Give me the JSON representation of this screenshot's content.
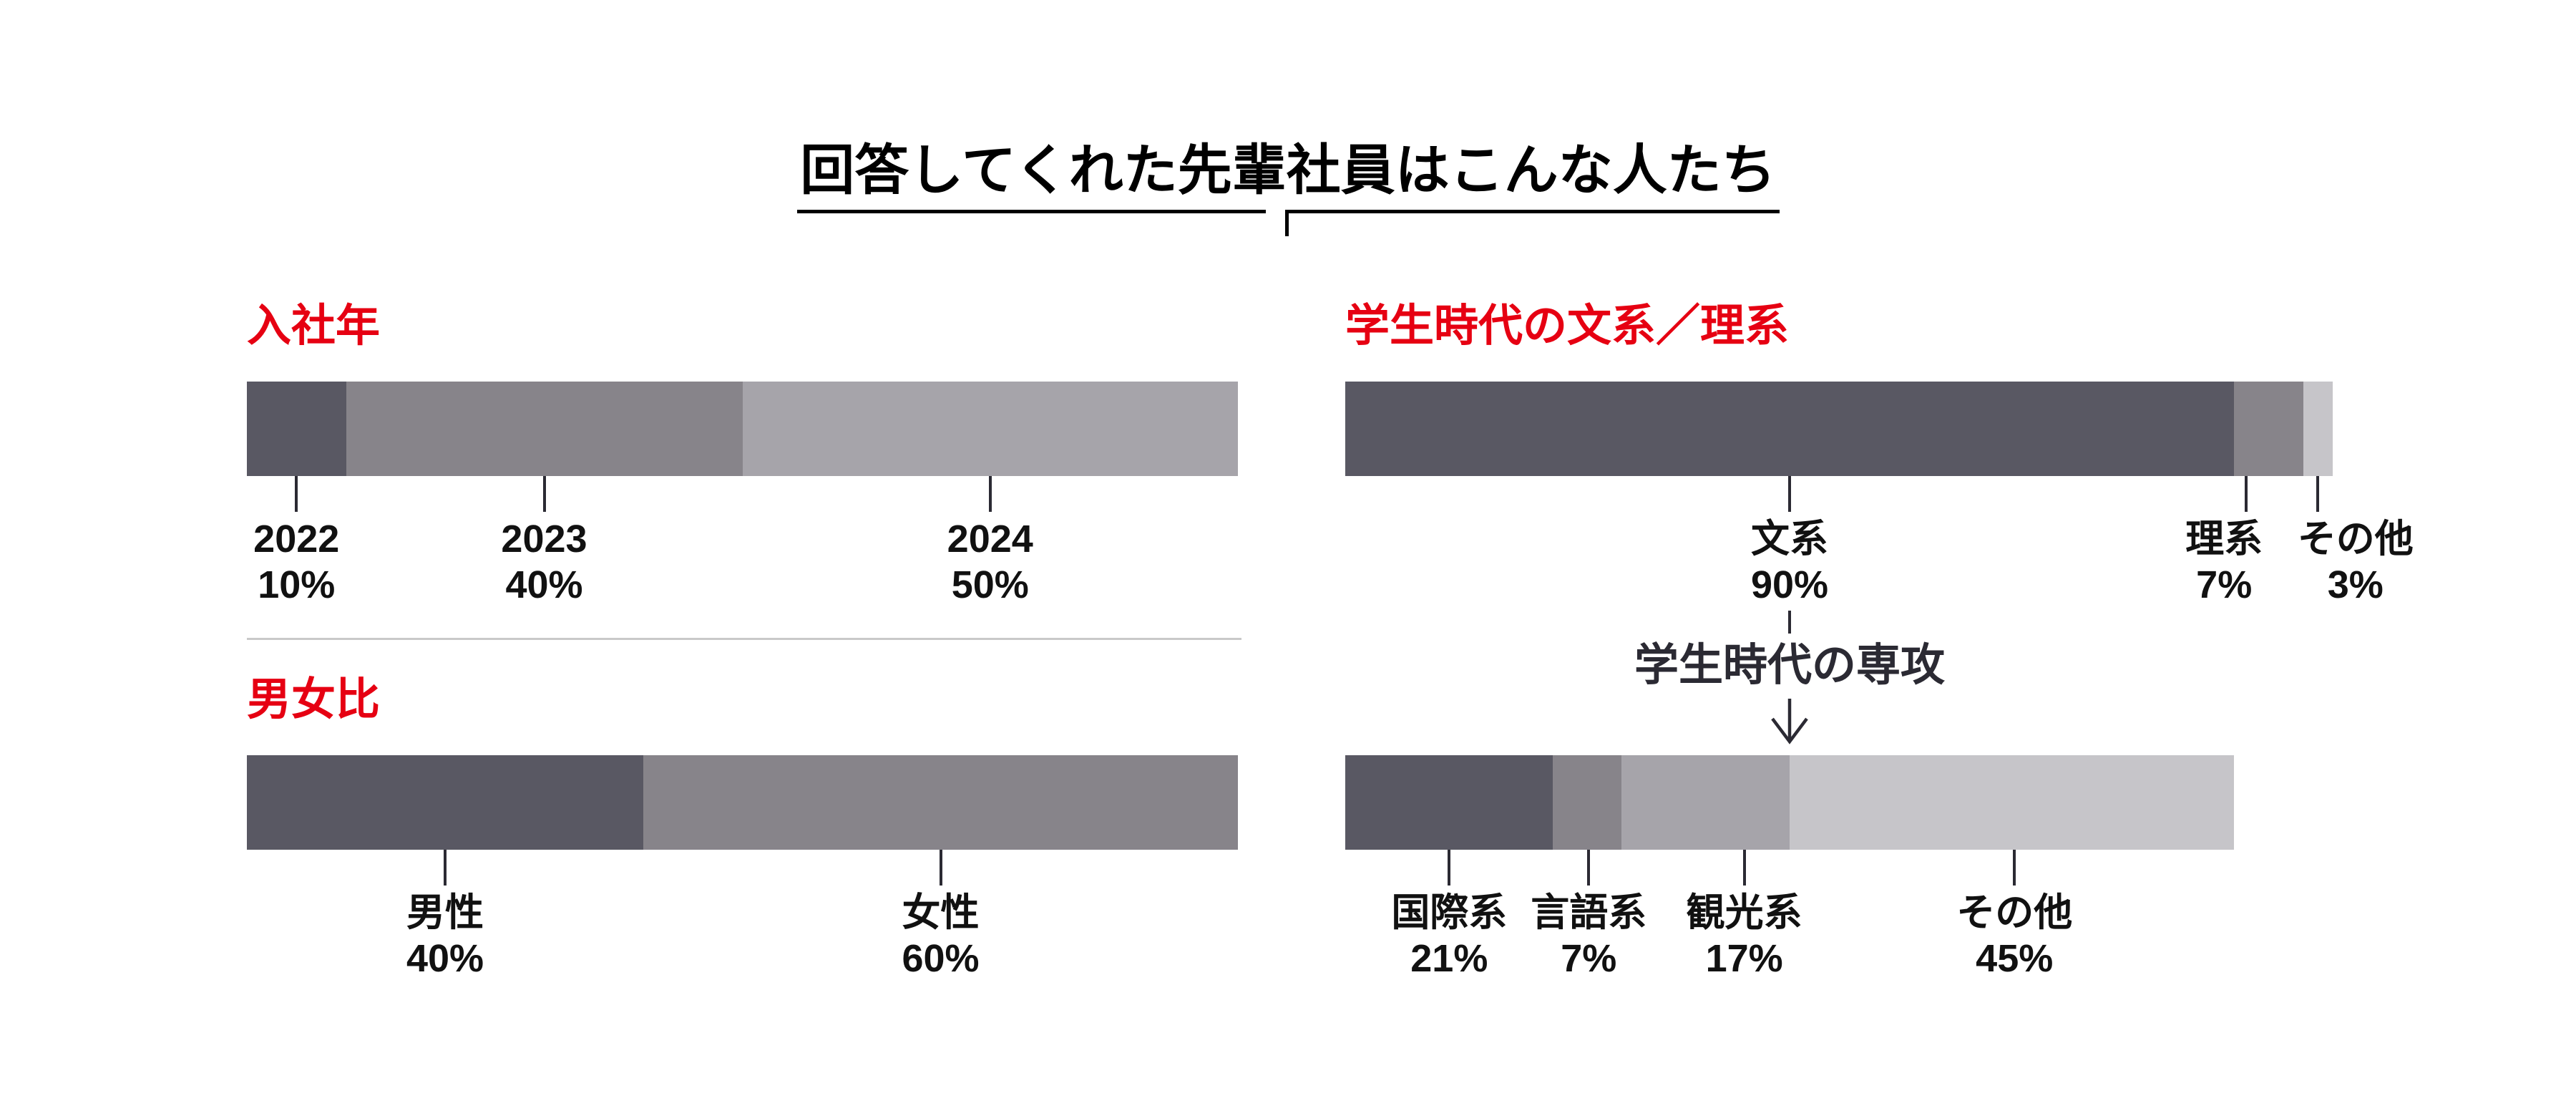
{
  "title": {
    "text": "回答してくれた先輩社員はこんな人たち"
  },
  "colors": {
    "accent_red": "#E60012",
    "bar_dark": "#595863",
    "bar_medium": "#87848A",
    "bar_light": "#A6A4AA",
    "bar_lightest": "#C6C5C9",
    "line_dark": "#2B2A33",
    "text_black": "#111111",
    "divider_gray": "#C9C9C9",
    "background": "#FFFFFF"
  },
  "chart_data": [
    {
      "key": "joining-year",
      "type": "bar",
      "stacked": true,
      "orientation": "horizontal",
      "title": "入社年",
      "total": 100,
      "unit": "%",
      "legend": "none",
      "segments": [
        {
          "label": "2022",
          "value": 10,
          "color": "#595863",
          "tick_at": 5,
          "label_at": 5
        },
        {
          "label": "2023",
          "value": 40,
          "color": "#87848A",
          "tick_at": 30,
          "label_at": 30
        },
        {
          "label": "2024",
          "value": 50,
          "color": "#A6A4AA",
          "tick_at": 75,
          "label_at": 75
        }
      ]
    },
    {
      "key": "gender-ratio",
      "type": "bar",
      "stacked": true,
      "orientation": "horizontal",
      "title": "男女比",
      "total": 100,
      "unit": "%",
      "legend": "none",
      "segments": [
        {
          "label": "男性",
          "value": 40,
          "color": "#595863",
          "tick_at": 20,
          "label_at": 20
        },
        {
          "label": "女性",
          "value": 60,
          "color": "#87848A",
          "tick_at": 70,
          "label_at": 70
        }
      ]
    },
    {
      "key": "humanities-sciences",
      "type": "bar",
      "stacked": true,
      "orientation": "horizontal",
      "title": "学生時代の文系／理系",
      "total": 100,
      "unit": "%",
      "legend": "none",
      "segments": [
        {
          "label": "文系",
          "value": 90,
          "color": "#595863",
          "tick_at": 45,
          "label_at": 45
        },
        {
          "label": "理系",
          "value": 7,
          "color": "#87848A",
          "tick_at": 91.2,
          "label_at": 89
        },
        {
          "label": "その他",
          "value": 3,
          "color": "#C6C5C9",
          "tick_at": 98.5,
          "label_at": 102.3
        }
      ]
    },
    {
      "key": "major",
      "type": "bar",
      "stacked": true,
      "orientation": "horizontal",
      "title": "学生時代の専攻",
      "heading_hidden": true,
      "total": 90,
      "unit": "%",
      "legend": "none",
      "note": "breakdown of 文系 90%; bar width equals 90% of the bar above",
      "segments": [
        {
          "label": "国際系",
          "value": 21,
          "color": "#595863",
          "tick_at": 11.7,
          "label_at": 11.7
        },
        {
          "label": "言語系",
          "value": 7,
          "color": "#87848A",
          "tick_at": 27.4,
          "label_at": 27.4
        },
        {
          "label": "観光系",
          "value": 17,
          "color": "#A6A4AA",
          "tick_at": 44.9,
          "label_at": 44.9
        },
        {
          "label": "その他",
          "value": 45,
          "color": "#C6C5C9",
          "tick_at": 75.3,
          "label_at": 75.3
        }
      ]
    }
  ]
}
